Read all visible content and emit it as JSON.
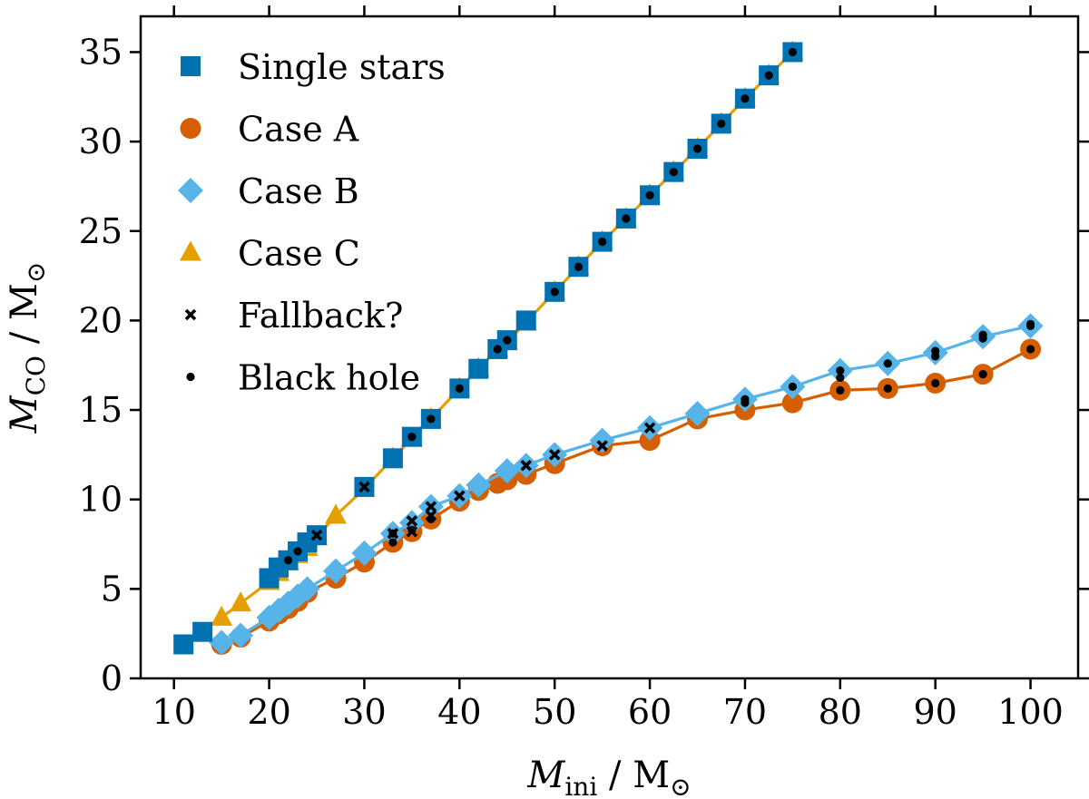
{
  "chart_data": {
    "type": "scatter",
    "title": "",
    "xlabel": {
      "symbol": "M",
      "sub": "ini",
      "unit": " / M",
      "unit_sub": "⊙"
    },
    "ylabel": {
      "symbol": "M",
      "sub": "CO",
      "unit": " / M",
      "unit_sub": "⊙"
    },
    "xlim": [
      6.5,
      105
    ],
    "ylim": [
      0,
      37
    ],
    "xticks": [
      10,
      20,
      30,
      40,
      50,
      60,
      70,
      80,
      90,
      100
    ],
    "yticks": [
      0,
      5,
      10,
      15,
      20,
      25,
      30,
      35
    ],
    "legend_position": "top-left",
    "colors": {
      "single": "#0072b2",
      "caseA": "#d55e00",
      "caseB": "#56b4e9",
      "caseC": "#e69f00",
      "marker": "#000000"
    },
    "series": [
      {
        "name": "Single stars",
        "key": "single",
        "marker": "square",
        "line": false,
        "x": [
          11,
          13,
          20,
          21,
          22,
          23,
          24,
          25,
          30,
          33,
          35,
          37,
          40,
          42,
          44,
          45,
          47,
          50,
          52.5,
          55,
          57.5,
          60,
          62.5,
          65,
          67.5,
          70,
          72.5,
          75
        ],
        "y": [
          1.9,
          2.6,
          5.6,
          6.2,
          6.6,
          7.1,
          7.6,
          8.0,
          10.7,
          12.3,
          13.5,
          14.5,
          16.2,
          17.3,
          18.4,
          18.9,
          20.0,
          21.6,
          23.0,
          24.4,
          25.7,
          27.0,
          28.3,
          29.6,
          31.0,
          32.4,
          33.7,
          35.0
        ]
      },
      {
        "name": "Case A",
        "key": "caseA",
        "marker": "circle",
        "line": true,
        "x": [
          15,
          17,
          20,
          21,
          22,
          23,
          24,
          27,
          30,
          33,
          35,
          37,
          40,
          42,
          44,
          45,
          47,
          50,
          55,
          60,
          65,
          70,
          75,
          80,
          85,
          90,
          95,
          100
        ],
        "y": [
          1.9,
          2.3,
          3.2,
          3.6,
          3.9,
          4.3,
          4.8,
          5.6,
          6.5,
          7.6,
          8.2,
          8.9,
          9.9,
          10.5,
          10.9,
          11.1,
          11.4,
          12.0,
          13.0,
          13.3,
          14.5,
          15.0,
          15.4,
          16.1,
          16.2,
          16.5,
          17.0,
          18.4
        ]
      },
      {
        "name": "Case B",
        "key": "caseB",
        "marker": "diamond",
        "line": true,
        "x": [
          15,
          17,
          20,
          21,
          22,
          23,
          24,
          27,
          30,
          33,
          35,
          37,
          40,
          42,
          45,
          47,
          50,
          55,
          60,
          65,
          70,
          75,
          80,
          85,
          90,
          95,
          100
        ],
        "y": [
          2.0,
          2.4,
          3.4,
          3.8,
          4.2,
          4.6,
          5.0,
          6.0,
          7.0,
          8.1,
          8.7,
          9.6,
          10.2,
          10.8,
          11.6,
          11.9,
          12.5,
          13.3,
          14.0,
          14.8,
          15.6,
          16.3,
          17.2,
          17.6,
          18.2,
          19.1,
          19.7
        ]
      },
      {
        "name": "Case C",
        "key": "caseC",
        "marker": "triangle",
        "line": true,
        "x": [
          15,
          17,
          20,
          21,
          22,
          23,
          24,
          25,
          27,
          30,
          33,
          35,
          37,
          40,
          42,
          44,
          45,
          47,
          50,
          52.5,
          55,
          57.5,
          60,
          62.5,
          65,
          67.5,
          70,
          72.5,
          75
        ],
        "y": [
          3.4,
          4.2,
          5.4,
          5.9,
          6.5,
          6.9,
          7.3,
          7.9,
          9.1,
          10.6,
          12.3,
          13.4,
          14.5,
          16.2,
          17.3,
          18.4,
          18.8,
          19.9,
          21.6,
          23.0,
          24.4,
          25.7,
          27.0,
          28.3,
          29.6,
          31.0,
          32.4,
          33.7,
          35.0
        ]
      },
      {
        "name": "Fallback?",
        "key": "marker",
        "marker": "cross",
        "line": false,
        "x": [
          25,
          30,
          33,
          35,
          35,
          37,
          37,
          40,
          47,
          50,
          55,
          60
        ],
        "y": [
          8.0,
          10.7,
          8.1,
          8.8,
          8.2,
          9.6,
          9.1,
          10.2,
          11.9,
          12.5,
          13.0,
          14.0
        ]
      },
      {
        "name": "Black hole",
        "key": "marker",
        "marker": "dot",
        "line": false,
        "x": [
          22,
          23,
          33,
          33,
          35,
          35,
          37,
          37,
          40,
          44,
          45,
          50,
          52.5,
          55,
          57.5,
          60,
          62.5,
          65,
          67.5,
          70,
          70,
          70,
          72.5,
          75,
          75,
          80,
          80,
          80,
          85,
          85,
          90,
          90,
          90,
          95,
          95,
          95,
          100,
          100,
          100
        ],
        "y": [
          6.6,
          7.1,
          7.6,
          8.1,
          8.3,
          13.5,
          8.9,
          14.5,
          16.2,
          18.4,
          18.9,
          21.6,
          23.0,
          24.4,
          25.7,
          27.0,
          28.3,
          29.6,
          31.0,
          32.4,
          15.6,
          15.4,
          33.7,
          35.0,
          16.3,
          16.1,
          16.8,
          17.2,
          16.2,
          17.6,
          16.5,
          18.0,
          18.3,
          17.0,
          19.0,
          19.2,
          18.4,
          19.7,
          19.8
        ]
      }
    ]
  }
}
